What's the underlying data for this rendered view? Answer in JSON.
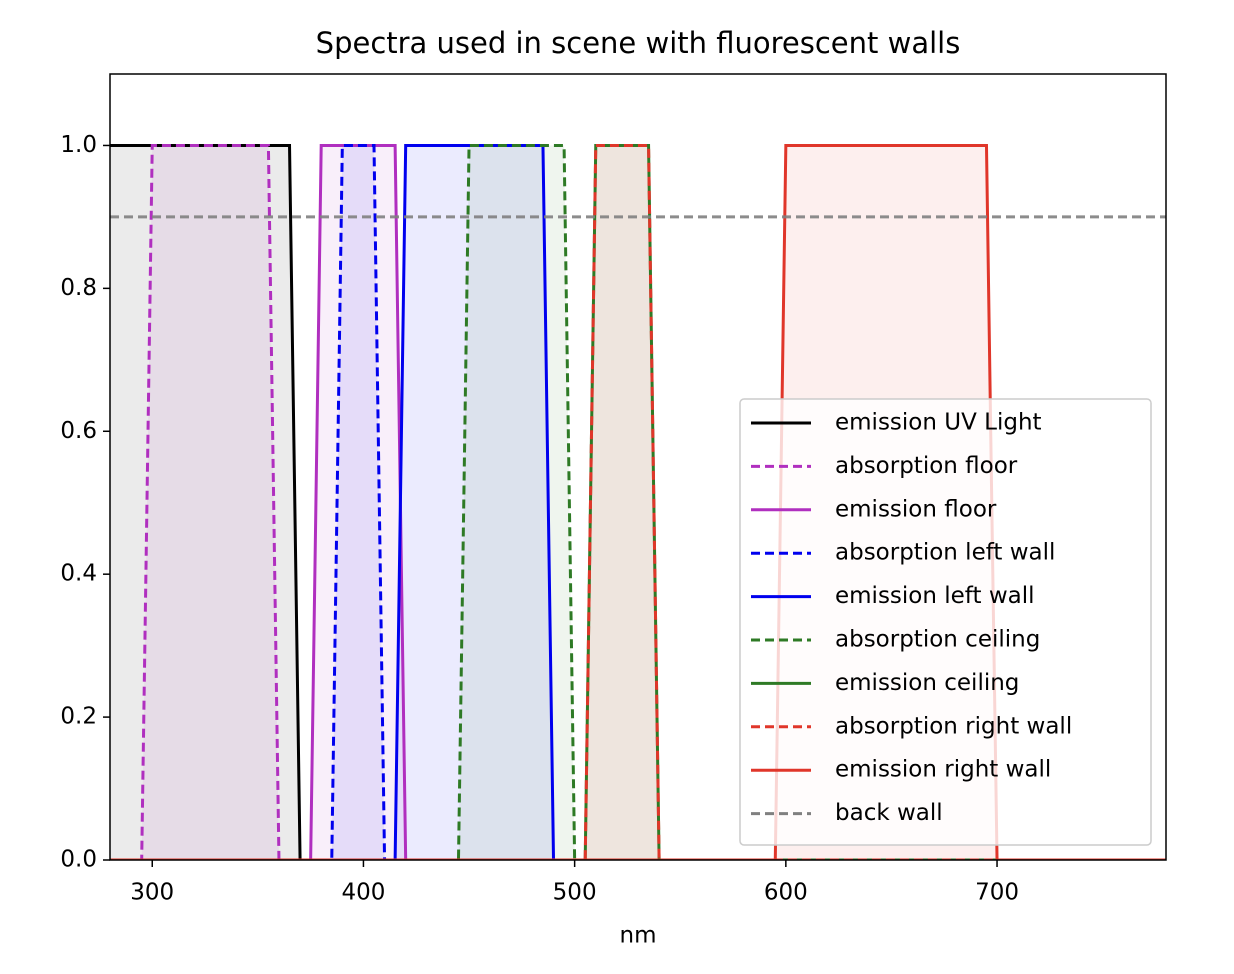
{
  "chart_data": {
    "type": "line",
    "title": "Spectra used in scene with fluorescent walls",
    "x_label": "nm",
    "xlim": [
      280,
      780
    ],
    "ylim": [
      0,
      1.1
    ],
    "xticks": [
      300,
      400,
      500,
      600,
      700
    ],
    "yticks": [
      {
        "value": 0,
        "label": "0.0"
      },
      {
        "value": 0.2,
        "label": "0.2"
      },
      {
        "value": 0.4,
        "label": "0.4"
      },
      {
        "value": 0.6,
        "label": "0.6"
      },
      {
        "value": 0.8,
        "label": "0.8"
      },
      {
        "value": 1.0,
        "label": "1.0"
      }
    ],
    "legend": "lower right",
    "series": [
      {
        "name": "emission UV Light",
        "color": "#000000",
        "dashed": false,
        "fill": true,
        "x": [
          280,
          365,
          370,
          780
        ],
        "values": [
          1,
          1,
          0,
          0
        ]
      },
      {
        "name": "absorption floor",
        "color": "#b02fbf",
        "dashed": true,
        "fill": true,
        "x": [
          280,
          295,
          300,
          355,
          360,
          780
        ],
        "values": [
          0,
          0,
          1,
          1,
          0,
          0
        ]
      },
      {
        "name": "emission floor",
        "color": "#b02fbf",
        "dashed": false,
        "fill": true,
        "x": [
          280,
          375,
          380,
          415,
          420,
          780
        ],
        "values": [
          0,
          0,
          1,
          1,
          0,
          0
        ]
      },
      {
        "name": "absorption left wall",
        "color": "#0000ee",
        "dashed": true,
        "fill": true,
        "x": [
          280,
          385,
          390,
          405,
          410,
          780
        ],
        "values": [
          0,
          0,
          1,
          1,
          0,
          0
        ]
      },
      {
        "name": "emission left wall",
        "color": "#0000ee",
        "dashed": false,
        "fill": true,
        "x": [
          280,
          415,
          420,
          485,
          490,
          780
        ],
        "values": [
          0,
          0,
          1,
          1,
          0,
          0
        ]
      },
      {
        "name": "absorption ceiling",
        "color": "#2e7a25",
        "dashed": true,
        "fill": true,
        "x": [
          280,
          445,
          450,
          495,
          500,
          780
        ],
        "values": [
          0,
          0,
          1,
          1,
          0,
          0
        ]
      },
      {
        "name": "emission ceiling",
        "color": "#2e7a25",
        "dashed": false,
        "fill": true,
        "x": [
          280,
          505,
          510,
          535,
          540,
          780
        ],
        "values": [
          0,
          0,
          1,
          1,
          0,
          0
        ]
      },
      {
        "name": "absorption right wall",
        "color": "#e0362a",
        "dashed": true,
        "fill": true,
        "x": [
          280,
          505,
          510,
          535,
          540,
          780
        ],
        "values": [
          0,
          0,
          1,
          1,
          0,
          0
        ]
      },
      {
        "name": "emission right wall",
        "color": "#e0362a",
        "dashed": false,
        "fill": true,
        "x": [
          280,
          595,
          600,
          695,
          700,
          780
        ],
        "values": [
          0,
          0,
          1,
          1,
          0,
          0
        ]
      },
      {
        "name": "back wall",
        "color": "#808080",
        "dashed": true,
        "fill": false,
        "x": [
          280,
          780
        ],
        "values": [
          0.9,
          0.9
        ]
      }
    ]
  }
}
